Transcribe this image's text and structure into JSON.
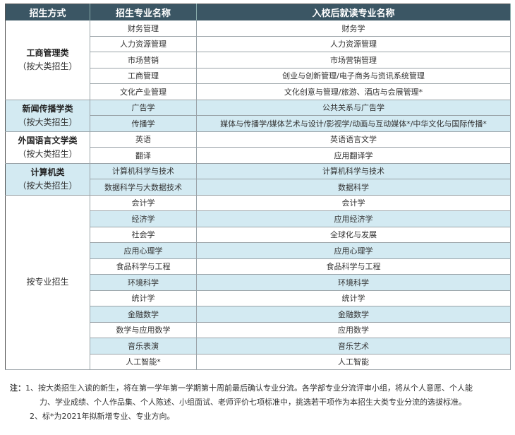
{
  "header": [
    "招生方式",
    "招生专业名称",
    "入校后就读专业名称"
  ],
  "groups": [
    {
      "name": "工商管理类",
      "sub": "（按大类招生）",
      "shade": false,
      "rows": [
        {
          "major": "财务管理",
          "after": "财务学",
          "blue": false
        },
        {
          "major": "人力资源管理",
          "after": "人力资源管理",
          "blue": false
        },
        {
          "major": "市场营销",
          "after": "市场营销管理",
          "blue": false
        },
        {
          "major": "工商管理",
          "after": "创业与创新管理/电子商务与资讯系统管理",
          "blue": false
        },
        {
          "major": "文化产业管理",
          "after": "文化创意与管理/旅游、酒店与会展管理*",
          "blue": false
        }
      ]
    },
    {
      "name": "新闻传播学类",
      "sub": "（按大类招生）",
      "shade": true,
      "rows": [
        {
          "major": "广告学",
          "after": "公共关系与广告学",
          "blue": true
        },
        {
          "major": "传播学",
          "after": "媒体与传播学/媒体艺术与设计/影视学/动画与互动媒体*/中华文化与国际传播*",
          "blue": true
        }
      ]
    },
    {
      "name": "外国语言文学类",
      "sub": "（按大类招生）",
      "shade": false,
      "rows": [
        {
          "major": "英语",
          "after": "英语语言文学",
          "blue": false
        },
        {
          "major": "翻译",
          "after": "应用翻译学",
          "blue": false
        }
      ]
    },
    {
      "name": "计算机类",
      "sub": "（按大类招生）",
      "shade": true,
      "rows": [
        {
          "major": "计算机科学与技术",
          "after": "计算机科学与技术",
          "blue": true
        },
        {
          "major": "数据科学与大数据技术",
          "after": "数据科学",
          "blue": true
        }
      ]
    },
    {
      "name": "",
      "sub": "按专业招生",
      "shade": false,
      "rows": [
        {
          "major": "会计学",
          "after": "会计学",
          "blue": false
        },
        {
          "major": "经济学",
          "after": "应用经济学",
          "blue": true
        },
        {
          "major": "社会学",
          "after": "全球化与发展",
          "blue": false
        },
        {
          "major": "应用心理学",
          "after": "应用心理学",
          "blue": true
        },
        {
          "major": "食品科学与工程",
          "after": "食品科学与工程",
          "blue": false
        },
        {
          "major": "环境科学",
          "after": "环境科学",
          "blue": true
        },
        {
          "major": "统计学",
          "after": "统计学",
          "blue": false
        },
        {
          "major": "金融数学",
          "after": "金融数学",
          "blue": true
        },
        {
          "major": "数学与应用数学",
          "after": "应用数学",
          "blue": false
        },
        {
          "major": "音乐表演",
          "after": "音乐艺术",
          "blue": true
        },
        {
          "major": "人工智能*",
          "after": "人工智能",
          "blue": false
        }
      ]
    }
  ],
  "notes": {
    "label": "注：",
    "n1a": "1、按大类招生入读的新生，将在第一学年第一学期第十周前最后确认专业分流。各学部专业分流评审小组，将从个人意愿、个人能",
    "n1b": "力、学业成绩、个人作品集、个人陈述、小组面试、老师评价七项标准中，挑选若干项作为本招生大类专业分流的选拔标准。",
    "n2": "2、标*为2021年拟新增专业、专业方向。"
  },
  "colors": {
    "header_bg": "#3b5664",
    "row_blue": "#d3eaf2"
  }
}
